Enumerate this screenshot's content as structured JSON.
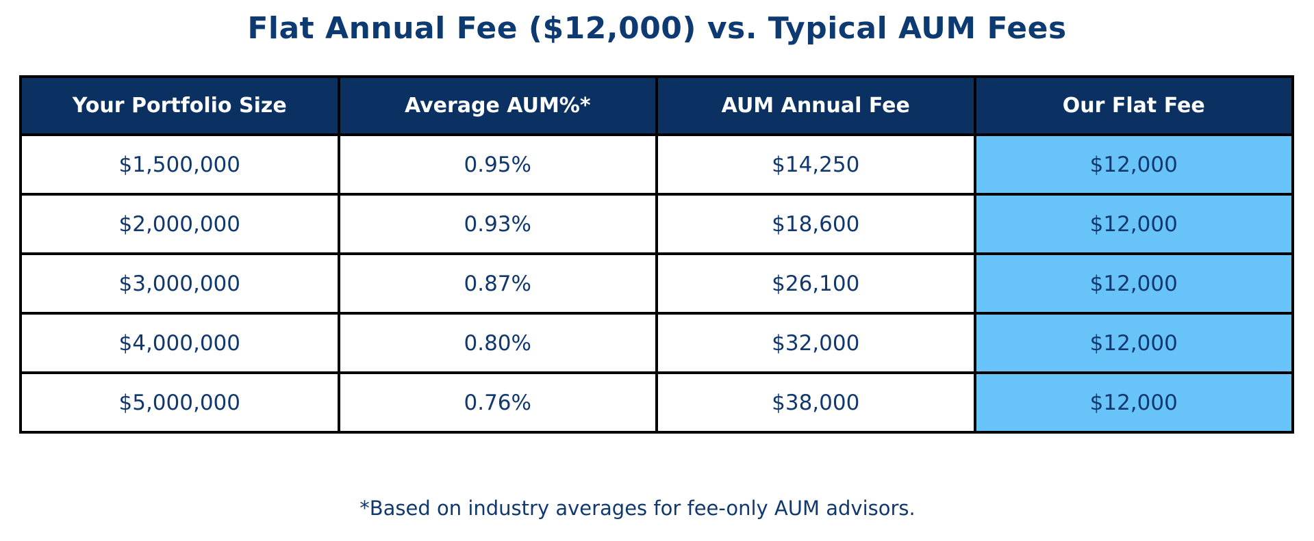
{
  "chart_data": {
    "type": "table",
    "title": "Flat Annual Fee ($12,000) vs. Typical AUM Fees",
    "columns": [
      "Your Portfolio Size",
      "Average AUM%*",
      "AUM Annual Fee",
      "Our Flat Fee"
    ],
    "rows": [
      [
        "$1,500,000",
        "0.95%",
        "$14,250",
        "$12,000"
      ],
      [
        "$2,000,000",
        "0.93%",
        "$18,600",
        "$12,000"
      ],
      [
        "$3,000,000",
        "0.87%",
        "$26,100",
        "$12,000"
      ],
      [
        "$4,000,000",
        "0.80%",
        "$32,000",
        "$12,000"
      ],
      [
        "$5,000,000",
        "0.76%",
        "$38,000",
        "$12,000"
      ]
    ],
    "footnote": "*Based on industry averages for fee-only AUM advisors.",
    "highlight_column": "Our Flat Fee",
    "layout": "header row navy with white bold text; data cells white with navy text; last column highlighted sky blue; thick black grid borders"
  },
  "colors": {
    "header_bg": "#0a3161",
    "header_text": "#ffffff",
    "navy_text": "#11386e",
    "title_text": "#0e3a72",
    "highlight_bg": "#68c3f8",
    "border": "#000000",
    "page_bg": "#ffffff"
  }
}
